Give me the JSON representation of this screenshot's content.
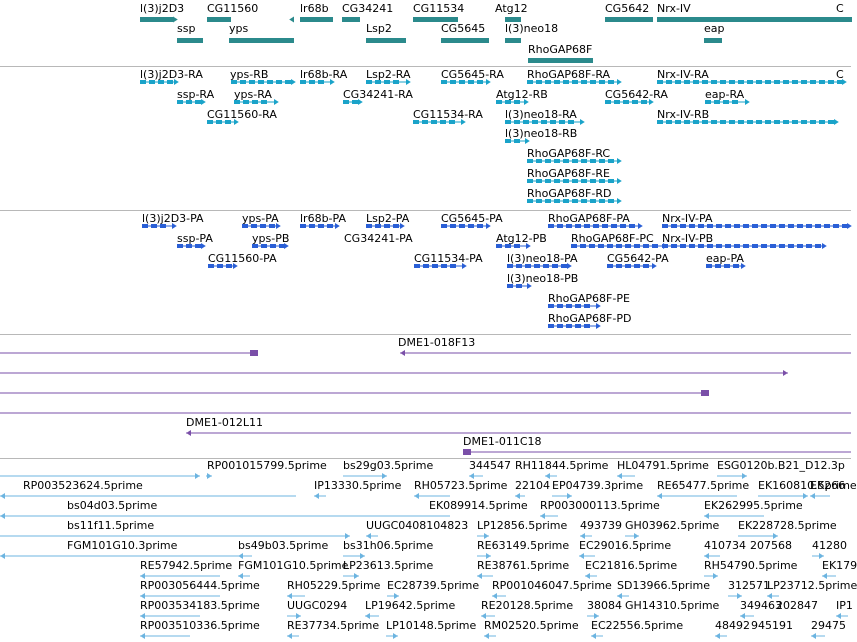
{
  "colors": {
    "gene": "#2b8a8c",
    "transcript_ra": "#1aa3c9",
    "transcript_pa": "#2a5fd6",
    "clone": "#7a4fa8",
    "est": "#6cb4e0",
    "separator": "#b8b8b8"
  },
  "tracks": {
    "genes": {
      "labels": [
        "l(3)j2D3",
        "CG11560",
        "lr68b",
        "CG34241",
        "CG11534",
        "Atg12",
        "CG5642",
        "Nrx-IV",
        "C",
        "ssp",
        "yps",
        "Lsp2",
        "CG5645",
        "l(3)neo18",
        "eap",
        "RhoGAP68F"
      ]
    },
    "transcripts_ra": {
      "labels": [
        "l(3)j2D3-RA",
        "yps-RB",
        "lr68b-RA",
        "Lsp2-RA",
        "CG5645-RA",
        "RhoGAP68F-RA",
        "Nrx-IV-RA",
        "C",
        "ssp-RA",
        "yps-RA",
        "CG34241-RA",
        "Atg12-RB",
        "CG5642-RA",
        "eap-RA",
        "CG11560-RA",
        "CG11534-RA",
        "l(3)neo18-RA",
        "Nrx-IV-RB",
        "l(3)neo18-RB",
        "RhoGAP68F-RC",
        "RhoGAP68F-RE",
        "RhoGAP68F-RD"
      ]
    },
    "transcripts_pa": {
      "labels": [
        "l(3)j2D3-PA",
        "yps-PA",
        "lr68b-PA",
        "Lsp2-PA",
        "CG5645-PA",
        "RhoGAP68F-PA",
        "Nrx-IV-PA",
        "ssp-PA",
        "yps-PB",
        "CG34241-PA",
        "Atg12-PB",
        "RhoGAP68F-PC",
        "Nrx-IV-PB",
        "CG11560-PA",
        "CG11534-PA",
        "l(3)neo18-PA",
        "CG5642-PA",
        "eap-PA",
        "l(3)neo18-PB",
        "RhoGAP68F-PE",
        "RhoGAP68F-PD"
      ]
    },
    "clones": {
      "labels": [
        "DME1-018F13",
        "DME1-012L11",
        "DME1-011C18"
      ]
    },
    "ests": {
      "labels": [
        "RP001015799.5prime",
        "bs29g03.5prime",
        "344547",
        "RH11844.5prime",
        "HL04791.5prime",
        "ESG0120b.B21_D12.3p",
        "RP003523624.5prime",
        "IP13330.5prime",
        "RH05723.5prime",
        "22104",
        "EP04739.3prime",
        "RE65477.5prime",
        "EK160810.5prime",
        "EK266",
        "bs04d03.5prime",
        "EK089914.5prime",
        "RP003000113.5prime",
        "EK262995.5prime",
        "bs11f11.5prime",
        "UUGC0408104823",
        "LP12856.5prime",
        "493739",
        "GH03962.5prime",
        "EK228728.5prime",
        "FGM101G10.3prime",
        "bs49b03.5prime",
        "bs31h06.5prime",
        "RE63149.5prime",
        "EC29016.5prime",
        "410734",
        "207568",
        "41280",
        "RE57942.5prime",
        "FGM101G10.5prime",
        "LP23613.5prime",
        "RE38761.5prime",
        "EC21816.5prime",
        "RH54790.5prime",
        "EK179",
        "RP003056444.5prime",
        "RH05229.5prime",
        "EC28739.5prime",
        "RP001046047.5prime",
        "SD13966.5prime",
        "312571",
        "LP23712.5prime",
        "RP003534183.5prime",
        "UUGC0294",
        "LP19642.5prime",
        "RE20128.5prime",
        "38084",
        "GH14310.5prime",
        "349463",
        "202847",
        "IP1",
        "RP003510336.5prime",
        "RE37734.5prime",
        "LP10148.5prime",
        "RM02520.5prime",
        "EC22556.5prime",
        "48492",
        "945191",
        "29475"
      ]
    }
  }
}
